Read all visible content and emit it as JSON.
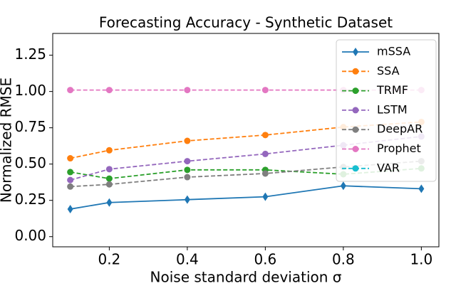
{
  "chart_data": {
    "type": "line",
    "title": "Forecasting Accuracy - Synthetic Dataset",
    "x_label": "Noise standard deviation σ",
    "y_label": "Normalized RMSE",
    "x": [
      0.1,
      0.2,
      0.4,
      0.6,
      0.8,
      1.0
    ],
    "xlim": [
      0.055,
      1.045
    ],
    "ylim": [
      -0.07,
      1.4
    ],
    "xticks": [
      0.2,
      0.4,
      0.6,
      0.8,
      {
        "value": 1,
        "label": "1.0"
      }
    ],
    "yticks": [
      {
        "value": 0,
        "label": "0.00"
      },
      0.25,
      {
        "value": 0.5,
        "label": "0.50"
      },
      0.75,
      {
        "value": 1,
        "label": "1.00"
      },
      1.25
    ],
    "legend": "upper right",
    "series": [
      {
        "name": "mSSA",
        "color": "#1f77b4",
        "marker": "diamond",
        "linestyle": "solid",
        "values": [
          0.19,
          0.235,
          0.255,
          0.275,
          0.35,
          0.33
        ]
      },
      {
        "name": "SSA",
        "color": "#ff7f0e",
        "marker": "circle",
        "linestyle": "dashed",
        "values": [
          0.54,
          0.595,
          0.66,
          0.7,
          0.755,
          0.79
        ]
      },
      {
        "name": "TRMF",
        "color": "#2ca02c",
        "marker": "circle",
        "linestyle": "dashed",
        "values": [
          0.445,
          0.4,
          0.46,
          0.46,
          0.43,
          0.47
        ]
      },
      {
        "name": "LSTM",
        "color": "#9467bd",
        "marker": "circle",
        "linestyle": "dashed",
        "values": [
          0.39,
          0.465,
          0.52,
          0.57,
          0.63,
          0.69
        ]
      },
      {
        "name": "DeepAR",
        "color": "#7f7f7f",
        "marker": "circle",
        "linestyle": "dashed",
        "values": [
          0.345,
          0.36,
          0.41,
          0.435,
          0.48,
          0.52
        ]
      },
      {
        "name": "Prophet",
        "color": "#e377c2",
        "marker": "circle",
        "linestyle": "dashed",
        "values": [
          1.01,
          1.01,
          1.01,
          1.01,
          1.01,
          1.01
        ]
      },
      {
        "name": "VAR",
        "color": "#17becf",
        "marker": "circle",
        "linestyle": "dashed",
        "values": [
          null,
          null,
          null,
          null,
          null,
          null
        ]
      }
    ]
  }
}
